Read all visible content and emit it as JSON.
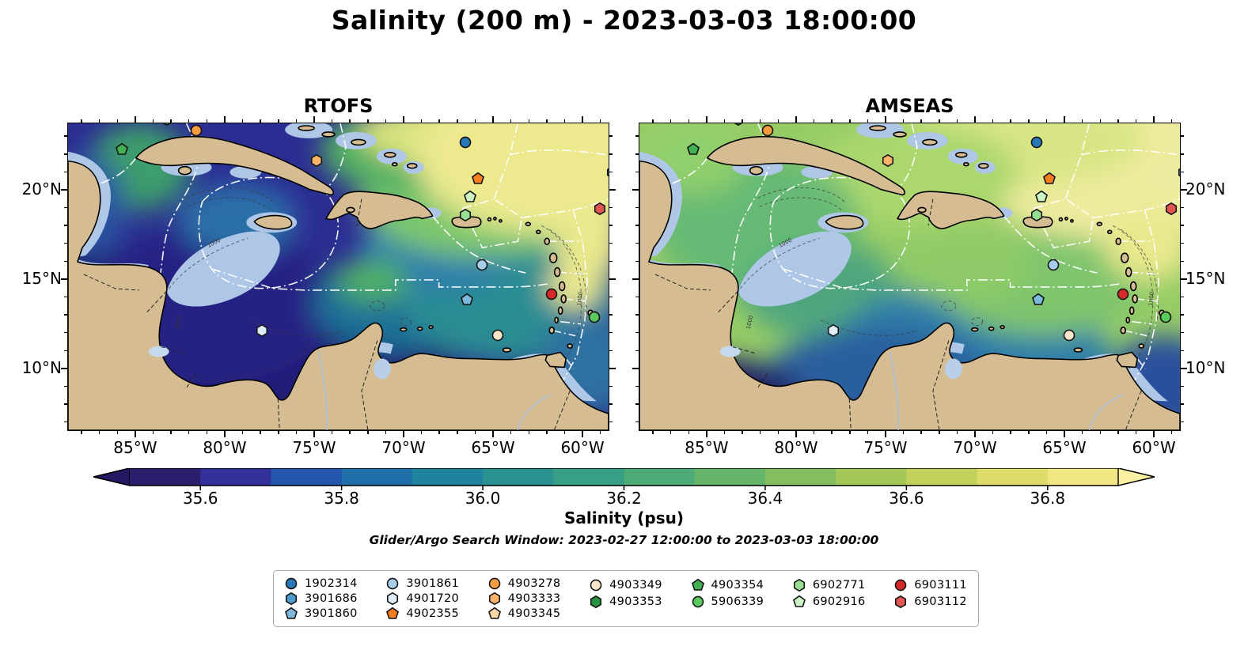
{
  "title": "Salinity (200 m) - 2023-03-03 18:00:00",
  "search_window": "Glider/Argo Search Window: 2023-02-27 12:00:00 to 2023-03-03 18:00:00",
  "panels": [
    {
      "id": "rtofs",
      "title": "RTOFS"
    },
    {
      "id": "amseas",
      "title": "AMSEAS"
    }
  ],
  "map_extent": {
    "lon_w_max": 88.8,
    "lon_w_min": 58.5,
    "lat_n_max": 23.76,
    "lat_n_min": 6.5
  },
  "axis": {
    "x_ticks": [
      {
        "label": "85°W",
        "lon_w": 85
      },
      {
        "label": "80°W",
        "lon_w": 80
      },
      {
        "label": "75°W",
        "lon_w": 75
      },
      {
        "label": "70°W",
        "lon_w": 70
      },
      {
        "label": "65°W",
        "lon_w": 65
      },
      {
        "label": "60°W",
        "lon_w": 60
      }
    ],
    "y_ticks": [
      {
        "label": "20°N",
        "lat_n": 20
      },
      {
        "label": "15°N",
        "lat_n": 15
      },
      {
        "label": "10°N",
        "lat_n": 10
      }
    ]
  },
  "colorbar": {
    "label": "Salinity (psu)",
    "ticks": [
      "35.6",
      "35.8",
      "36.0",
      "36.2",
      "36.4",
      "36.6",
      "36.8"
    ],
    "arrow_left": "#241763",
    "arrow_right": "#F9F0A4",
    "segments": [
      "#2A1E6D",
      "#32319B",
      "#2456AE",
      "#1F6FA9",
      "#20839E",
      "#2A9191",
      "#389E85",
      "#4CAB77",
      "#65B56B",
      "#83BF60",
      "#A3C859",
      "#C2D15C",
      "#DDDC6B",
      "#F0E684"
    ],
    "level_min": 35.5,
    "level_max": 36.9,
    "level_step": 0.1
  },
  "map_labels": {
    "contour_label": "1000"
  },
  "floats": {
    "1902314": {
      "shape": "circle",
      "color": "#2878B8"
    },
    "3901686": {
      "shape": "hexagon",
      "color": "#4E9CCE"
    },
    "3901860": {
      "shape": "pentagon",
      "color": "#7CB9DC"
    },
    "3901861": {
      "shape": "circle",
      "color": "#A6CEE8"
    },
    "4901720": {
      "shape": "hexagon",
      "color": "#DCEDF8"
    },
    "4902355": {
      "shape": "pentagon",
      "color": "#F57E20"
    },
    "4903278": {
      "shape": "circle",
      "color": "#F99B41"
    },
    "4903333": {
      "shape": "hexagon",
      "color": "#FBB469"
    },
    "4903345": {
      "shape": "pentagon",
      "color": "#FDD9A8"
    },
    "4903349": {
      "shape": "circle",
      "color": "#FAE5C9"
    },
    "4903353": {
      "shape": "hexagon",
      "color": "#27923F"
    },
    "4903354": {
      "shape": "pentagon",
      "color": "#44B054"
    },
    "5906339": {
      "shape": "circle",
      "color": "#5AC95E"
    },
    "6902771": {
      "shape": "hexagon",
      "color": "#97E093"
    },
    "6902916": {
      "shape": "pentagon",
      "color": "#CDF2C5"
    },
    "6903111": {
      "shape": "circle",
      "color": "#D62A28"
    },
    "6903112": {
      "shape": "hexagon",
      "color": "#E15554"
    }
  },
  "legend_columns": [
    [
      "1902314",
      "3901686",
      "3901860"
    ],
    [
      "3901861",
      "4901720",
      "4902355"
    ],
    [
      "4903278",
      "4903333",
      "4903345"
    ],
    [
      "4903349",
      "4903353"
    ],
    [
      "4903354",
      "5906339"
    ],
    [
      "6902771",
      "6902916"
    ],
    [
      "6903111",
      "6903112"
    ]
  ],
  "markers": [
    {
      "id": "1902314",
      "fx": 0.733,
      "fy": 0.062,
      "lon_w": 66.6,
      "lat_n": 22.7
    },
    {
      "id": "4902355",
      "fx": 0.756,
      "fy": 0.179,
      "lon_w": 65.9,
      "lat_n": 20.7
    },
    {
      "id": "6902916",
      "fx": 0.742,
      "fy": 0.238,
      "lon_w": 66.3,
      "lat_n": 19.7
    },
    {
      "id": "6902771",
      "fx": 0.733,
      "fy": 0.297,
      "lon_w": 66.6,
      "lat_n": 18.6
    },
    {
      "id": "6903112",
      "fx": 0.981,
      "fy": 0.277,
      "lon_w": 59.1,
      "lat_n": 19.0
    },
    {
      "id": "3901861",
      "fx": 0.763,
      "fy": 0.459,
      "lon_w": 65.7,
      "lat_n": 15.8
    },
    {
      "id": "3901860",
      "fx": 0.736,
      "fy": 0.572,
      "lon_w": 66.5,
      "lat_n": 13.9
    },
    {
      "id": "6903111",
      "fx": 0.892,
      "fy": 0.554,
      "lon_w": 61.8,
      "lat_n": 14.2
    },
    {
      "id": "5906339",
      "fx": 0.971,
      "fy": 0.629,
      "lon_w": 59.4,
      "lat_n": 12.9
    },
    {
      "id": "4903349",
      "fx": 0.793,
      "fy": 0.687,
      "lon_w": 64.8,
      "lat_n": 11.9
    },
    {
      "id": "4901720",
      "fx": 0.358,
      "fy": 0.672,
      "lon_w": 78.0,
      "lat_n": 12.2
    },
    {
      "id": "4903354",
      "fx": 0.099,
      "fy": 0.085,
      "lon_w": 85.8,
      "lat_n": 22.3
    },
    {
      "id": "4903278",
      "fx": 0.236,
      "fy": 0.023,
      "lon_w": 81.6,
      "lat_n": 23.4
    },
    {
      "id": "4903333",
      "fx": 0.458,
      "fy": 0.121,
      "lon_w": 74.9,
      "lat_n": 21.7
    },
    {
      "id": "4903353",
      "fx": 0.182,
      "fy": -0.012,
      "lon_w": 83.3,
      "lat_n": 24.0
    },
    {
      "id": "3901686",
      "fx": 1.004,
      "fy": 0.16,
      "lon_w": 58.4,
      "lat_n": 21.0
    }
  ],
  "chart_data": {
    "type": "heatmap",
    "title": "Salinity (200 m) - 2023-03-03 18:00:00",
    "subplots": [
      "RTOFS",
      "AMSEAS"
    ],
    "variable": "Salinity (psu)",
    "depth_m": 200,
    "valid_time": "2023-03-03 18:00:00",
    "x_range_lon_w": [
      88.8,
      58.5
    ],
    "y_range_lat_n": [
      6.5,
      23.76
    ],
    "color_levels_psu": [
      35.5,
      35.6,
      35.7,
      35.8,
      35.9,
      36.0,
      36.1,
      36.2,
      36.3,
      36.4,
      36.5,
      36.6,
      36.7,
      36.8,
      36.9
    ],
    "colorbar_ticks_psu": [
      35.6,
      35.8,
      36.0,
      36.2,
      36.4,
      36.6,
      36.8
    ],
    "field_summary": {
      "RTOFS": "Caribbean basin mostly 35.5-35.9 psu (dark blue/indigo), fresher southwest; tropical Atlantic NE of the Antilles 36.4-36.9 psu (green to pale yellow)",
      "AMSEAS": "Caribbean basin mostly 36.4-36.7 psu (green), saltier overall; blue 35.8-36.1 band along southern Caribbean and southwest corner; pale yellow >36.8 patches northeast"
    },
    "overlay_points": [
      {
        "series": "glider/argo float",
        "id": "1902314",
        "lon_w": 66.6,
        "lat_n": 22.7
      },
      {
        "series": "glider/argo float",
        "id": "4902355",
        "lon_w": 65.9,
        "lat_n": 20.7
      },
      {
        "series": "glider/argo float",
        "id": "6902916",
        "lon_w": 66.3,
        "lat_n": 19.7
      },
      {
        "series": "glider/argo float",
        "id": "6902771",
        "lon_w": 66.6,
        "lat_n": 18.6
      },
      {
        "series": "glider/argo float",
        "id": "6903112",
        "lon_w": 59.1,
        "lat_n": 19.0
      },
      {
        "series": "glider/argo float",
        "id": "3901861",
        "lon_w": 65.7,
        "lat_n": 15.8
      },
      {
        "series": "glider/argo float",
        "id": "3901860",
        "lon_w": 66.5,
        "lat_n": 13.9
      },
      {
        "series": "glider/argo float",
        "id": "6903111",
        "lon_w": 61.8,
        "lat_n": 14.2
      },
      {
        "series": "glider/argo float",
        "id": "5906339",
        "lon_w": 59.4,
        "lat_n": 12.9
      },
      {
        "series": "glider/argo float",
        "id": "4903349",
        "lon_w": 64.8,
        "lat_n": 11.9
      },
      {
        "series": "glider/argo float",
        "id": "4901720",
        "lon_w": 78.0,
        "lat_n": 12.2
      },
      {
        "series": "glider/argo float",
        "id": "4903354",
        "lon_w": 85.8,
        "lat_n": 22.3
      },
      {
        "series": "glider/argo float",
        "id": "4903278",
        "lon_w": 81.6,
        "lat_n": 23.4
      },
      {
        "series": "glider/argo float",
        "id": "4903333",
        "lon_w": 74.9,
        "lat_n": 21.7
      },
      {
        "series": "glider/argo float",
        "id": "4903353",
        "lon_w": 83.3,
        "lat_n": 24.0
      },
      {
        "series": "glider/argo float",
        "id": "3901686",
        "lon_w": 58.4,
        "lat_n": 21.0
      }
    ],
    "legend_entries": [
      "1902314",
      "3901686",
      "3901860",
      "3901861",
      "4901720",
      "4902355",
      "4903278",
      "4903333",
      "4903345",
      "4903349",
      "4903353",
      "4903354",
      "5906339",
      "6902771",
      "6902916",
      "6903111",
      "6903112"
    ]
  }
}
